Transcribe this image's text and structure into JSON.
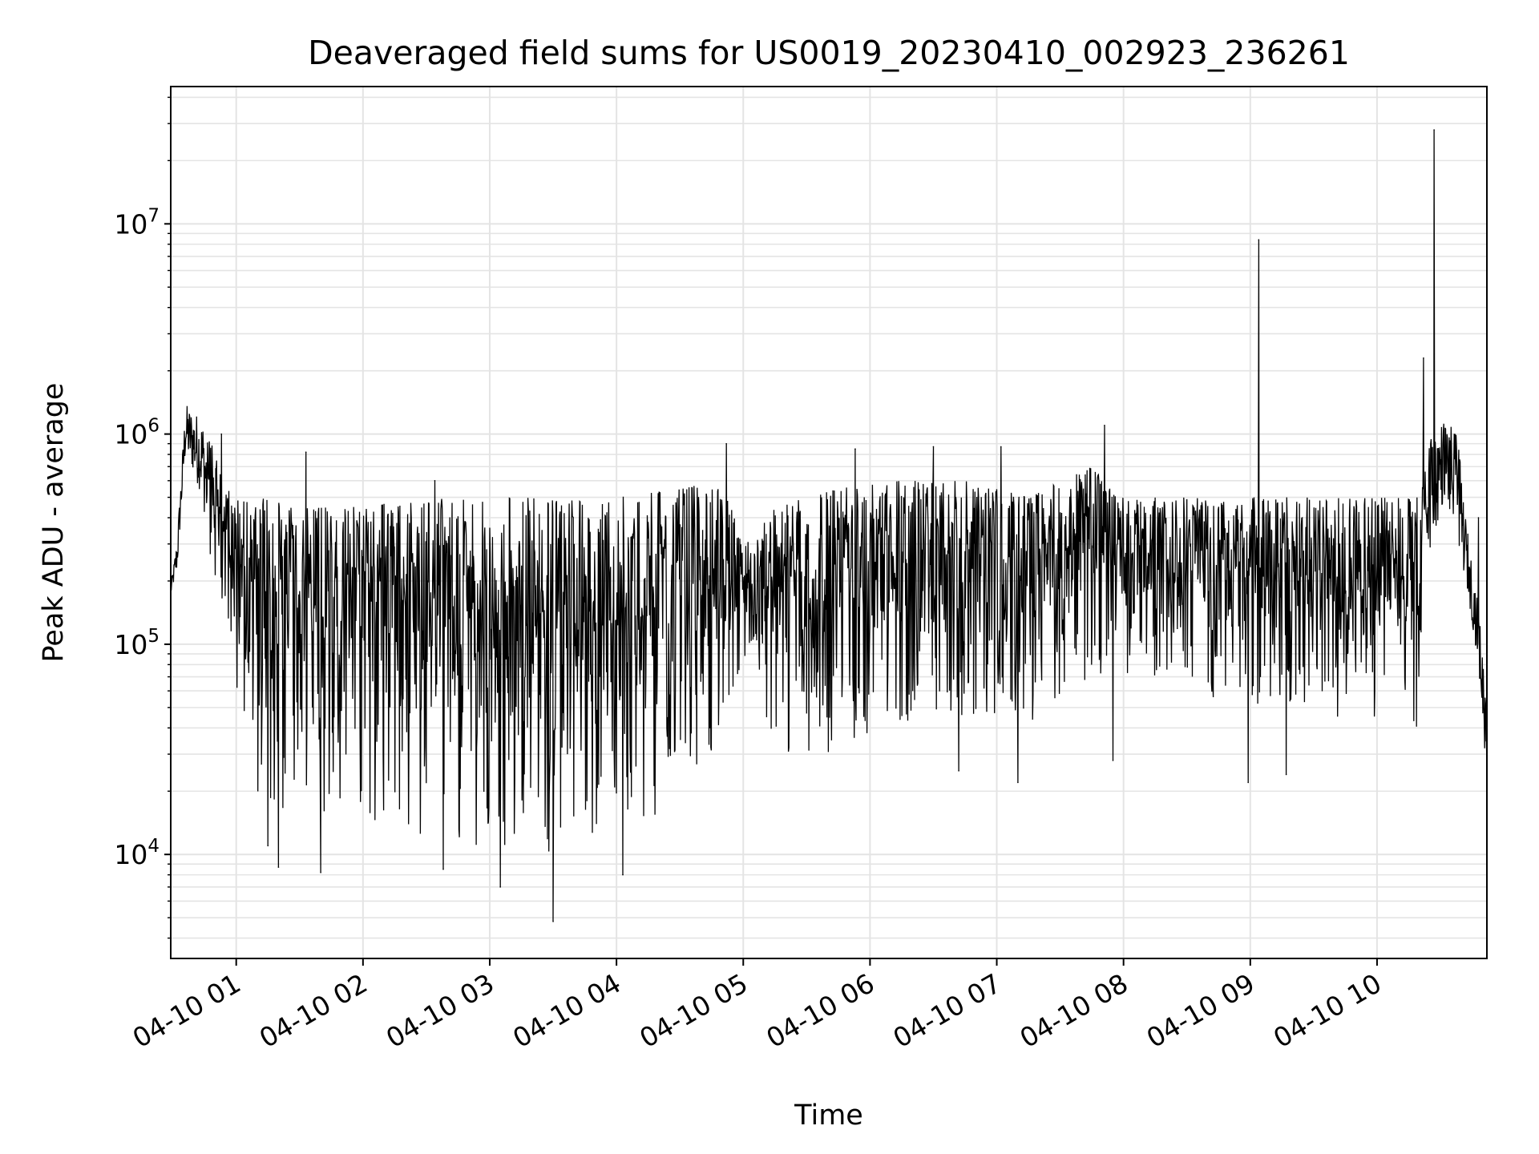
{
  "chart_data": {
    "type": "line",
    "title": "Deaveraged field sums for US0019_20230410_002923_236261",
    "xlabel": "Time",
    "ylabel": "Peak ADU - average",
    "yscale": "log",
    "ylim": [
      3200,
      45000000
    ],
    "xlim": [
      "2023-04-10 00:29",
      "2023-04-10 10:52"
    ],
    "grid": true,
    "line_color": "#000000",
    "x_ticks": [
      "04-10 01",
      "04-10 02",
      "04-10 03",
      "04-10 04",
      "04-10 05",
      "04-10 06",
      "04-10 07",
      "04-10 08",
      "04-10 09",
      "04-10 10"
    ],
    "y_ticks": [
      {
        "base": "10",
        "exp": "4"
      },
      {
        "base": "10",
        "exp": "5"
      },
      {
        "base": "10",
        "exp": "6"
      },
      {
        "base": "10",
        "exp": "7"
      }
    ],
    "series": [
      {
        "envelope": [
          {
            "t": "2023-04-10 00:29",
            "low": 170000,
            "high": 190000
          },
          {
            "t": "2023-04-10 00:32",
            "low": 220000,
            "high": 320000
          },
          {
            "t": "2023-04-10 00:36",
            "low": 800000,
            "high": 1400000
          },
          {
            "t": "2023-04-10 00:44",
            "low": 500000,
            "high": 1200000
          },
          {
            "t": "2023-04-10 00:50",
            "low": 150000,
            "high": 800000
          },
          {
            "t": "2023-04-10 00:58",
            "low": 60000,
            "high": 500000
          },
          {
            "t": "2023-04-10 01:10",
            "low": 18000,
            "high": 500000
          },
          {
            "t": "2023-04-10 01:30",
            "low": 15000,
            "high": 450000
          },
          {
            "t": "2023-04-10 02:00",
            "low": 15000,
            "high": 450000
          },
          {
            "t": "2023-04-10 02:30",
            "low": 12000,
            "high": 500000
          },
          {
            "t": "2023-04-10 03:00",
            "low": 10000,
            "high": 500000
          },
          {
            "t": "2023-04-10 03:30",
            "low": 10000,
            "high": 500000
          },
          {
            "t": "2023-04-10 04:00",
            "low": 12000,
            "high": 500000
          },
          {
            "t": "2023-04-10 04:30",
            "low": 18000,
            "high": 550000
          },
          {
            "t": "2023-04-10 04:50",
            "low": 25000,
            "high": 600000
          },
          {
            "t": "2023-04-10 05:00",
            "low": 90000,
            "high": 300000
          },
          {
            "t": "2023-04-10 05:15",
            "low": 30000,
            "high": 450000
          },
          {
            "t": "2023-04-10 05:45",
            "low": 30000,
            "high": 550000
          },
          {
            "t": "2023-04-10 06:15",
            "low": 40000,
            "high": 600000
          },
          {
            "t": "2023-04-10 06:45",
            "low": 45000,
            "high": 600000
          },
          {
            "t": "2023-04-10 07:15",
            "low": 40000,
            "high": 500000
          },
          {
            "t": "2023-04-10 07:45",
            "low": 60000,
            "high": 700000
          },
          {
            "t": "2023-04-10 08:00",
            "low": 70000,
            "high": 500000
          },
          {
            "t": "2023-04-10 08:30",
            "low": 60000,
            "high": 500000
          },
          {
            "t": "2023-04-10 09:00",
            "low": 50000,
            "high": 500000
          },
          {
            "t": "2023-04-10 09:30",
            "low": 45000,
            "high": 500000
          },
          {
            "t": "2023-04-10 10:00",
            "low": 45000,
            "high": 500000
          },
          {
            "t": "2023-04-10 10:20",
            "low": 40000,
            "high": 500000
          },
          {
            "t": "2023-04-10 10:26",
            "low": 300000,
            "high": 1000000
          },
          {
            "t": "2023-04-10 10:32",
            "low": 500000,
            "high": 1200000
          },
          {
            "t": "2023-04-10 10:38",
            "low": 300000,
            "high": 1000000
          },
          {
            "t": "2023-04-10 10:42",
            "low": 200000,
            "high": 400000
          },
          {
            "t": "2023-04-10 10:48",
            "low": 80000,
            "high": 150000
          },
          {
            "t": "2023-04-10 10:52",
            "low": 22000,
            "high": 60000
          }
        ],
        "spikes": [
          {
            "t": "2023-04-10 00:53",
            "value": 1000000
          },
          {
            "t": "2023-04-10 01:15",
            "value": 11000
          },
          {
            "t": "2023-04-10 01:20",
            "value": 8700
          },
          {
            "t": "2023-04-10 01:33",
            "value": 820000
          },
          {
            "t": "2023-04-10 01:40",
            "value": 8200
          },
          {
            "t": "2023-04-10 02:34",
            "value": 600000
          },
          {
            "t": "2023-04-10 02:38",
            "value": 8500
          },
          {
            "t": "2023-04-10 03:05",
            "value": 7000
          },
          {
            "t": "2023-04-10 03:30",
            "value": 4800
          },
          {
            "t": "2023-04-10 04:03",
            "value": 8000
          },
          {
            "t": "2023-04-10 04:52",
            "value": 900000
          },
          {
            "t": "2023-04-10 05:53",
            "value": 850000
          },
          {
            "t": "2023-04-10 06:30",
            "value": 870000
          },
          {
            "t": "2023-04-10 06:42",
            "value": 25000
          },
          {
            "t": "2023-04-10 07:02",
            "value": 870000
          },
          {
            "t": "2023-04-10 07:10",
            "value": 22000
          },
          {
            "t": "2023-04-10 07:51",
            "value": 1100000
          },
          {
            "t": "2023-04-10 07:55",
            "value": 28000
          },
          {
            "t": "2023-04-10 08:59",
            "value": 22000
          },
          {
            "t": "2023-04-10 09:04",
            "value": 8400000
          },
          {
            "t": "2023-04-10 09:17",
            "value": 24000
          },
          {
            "t": "2023-04-10 10:22",
            "value": 2300000
          },
          {
            "t": "2023-04-10 10:27",
            "value": 28000000
          },
          {
            "t": "2023-04-10 10:48",
            "value": 400000
          }
        ]
      }
    ]
  }
}
